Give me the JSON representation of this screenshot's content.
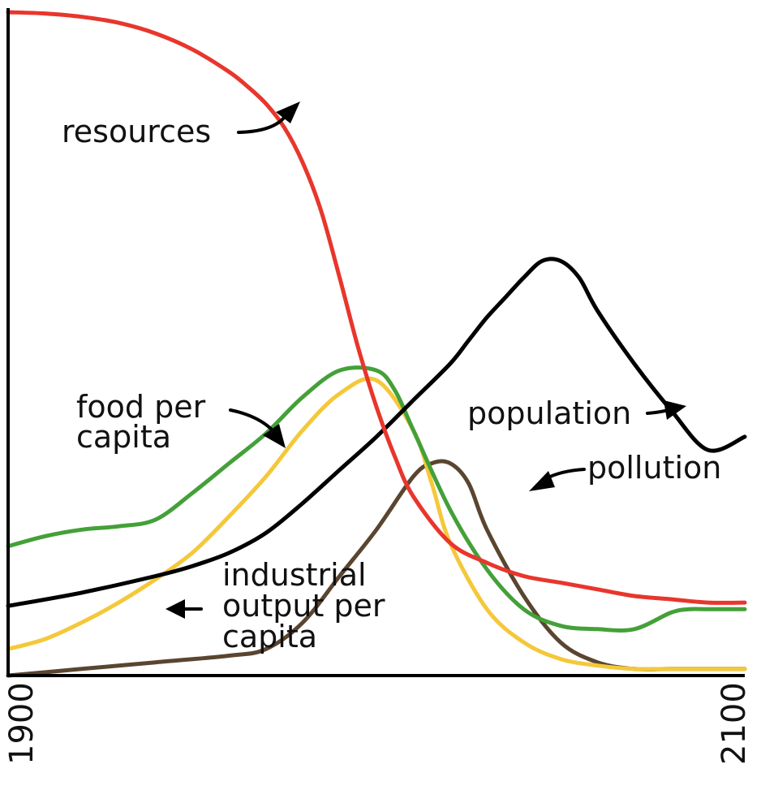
{
  "chart_data": {
    "type": "line",
    "xlim": [
      1900,
      2100
    ],
    "ylim": [
      0,
      1
    ],
    "grid": false,
    "x_ticks": [
      "1900",
      "2100"
    ],
    "series": [
      {
        "name": "resources",
        "color": "#e8362c",
        "x": [
          1900,
          1910,
          1920,
          1930,
          1940,
          1950,
          1960,
          1965,
          1970,
          1975,
          1980,
          1985,
          1990,
          1995,
          2000,
          2005,
          2010,
          2020,
          2030,
          2040,
          2050,
          2060,
          2070,
          2080,
          2090,
          2100
        ],
        "y": [
          1.0,
          0.998,
          0.993,
          0.984,
          0.968,
          0.944,
          0.91,
          0.888,
          0.862,
          0.826,
          0.773,
          0.7,
          0.6,
          0.495,
          0.405,
          0.33,
          0.27,
          0.2,
          0.17,
          0.15,
          0.14,
          0.13,
          0.12,
          0.115,
          0.11,
          0.11
        ]
      },
      {
        "name": "population",
        "color": "#000000",
        "x": [
          1900,
          1920,
          1940,
          1950,
          1960,
          1970,
          1980,
          1990,
          2000,
          2010,
          2020,
          2025,
          2030,
          2035,
          2040,
          2045,
          2050,
          2055,
          2060,
          2070,
          2080,
          2090,
          2100
        ],
        "y": [
          0.105,
          0.125,
          0.15,
          0.165,
          0.185,
          0.215,
          0.26,
          0.31,
          0.36,
          0.415,
          0.47,
          0.505,
          0.54,
          0.57,
          0.6,
          0.625,
          0.625,
          0.6,
          0.55,
          0.47,
          0.4,
          0.34,
          0.36
        ]
      },
      {
        "name": "food per capita",
        "color": "#44a038",
        "x": [
          1900,
          1910,
          1920,
          1930,
          1940,
          1950,
          1960,
          1970,
          1980,
          1990,
          2000,
          2005,
          2010,
          2020,
          2030,
          2040,
          2050,
          2060,
          2070,
          2080,
          2085,
          2090,
          2100
        ],
        "y": [
          0.195,
          0.21,
          0.22,
          0.225,
          0.235,
          0.275,
          0.32,
          0.365,
          0.42,
          0.46,
          0.46,
          0.43,
          0.37,
          0.25,
          0.16,
          0.1,
          0.075,
          0.07,
          0.07,
          0.095,
          0.1,
          0.1,
          0.1
        ]
      },
      {
        "name": "industrial output per capita",
        "color": "#f4c83a",
        "x": [
          1900,
          1910,
          1920,
          1930,
          1940,
          1950,
          1960,
          1970,
          1980,
          1990,
          2000,
          2010,
          2015,
          2020,
          2030,
          2040,
          2050,
          2060,
          2070,
          2080,
          2090,
          2100
        ],
        "y": [
          0.04,
          0.055,
          0.08,
          0.11,
          0.145,
          0.185,
          0.24,
          0.3,
          0.37,
          0.425,
          0.445,
          0.37,
          0.29,
          0.2,
          0.1,
          0.05,
          0.025,
          0.015,
          0.01,
          0.01,
          0.01,
          0.01
        ]
      },
      {
        "name": "pollution",
        "color": "#5a4530",
        "x": [
          1900,
          1920,
          1940,
          1960,
          1970,
          1980,
          1990,
          2000,
          2010,
          2015,
          2020,
          2025,
          2030,
          2040,
          2050,
          2060,
          2070,
          2080,
          2090,
          2100
        ],
        "y": [
          0.0,
          0.01,
          0.02,
          0.03,
          0.04,
          0.08,
          0.15,
          0.22,
          0.3,
          0.32,
          0.32,
          0.29,
          0.22,
          0.12,
          0.05,
          0.02,
          0.01,
          0.01,
          0.01,
          0.01
        ]
      }
    ],
    "labels": {
      "resources": "resources",
      "population": "population",
      "pollution": "pollution",
      "food_line1": "food per",
      "food_line2": "capita",
      "industrial_line1": "industrial",
      "industrial_line2": "output per",
      "industrial_line3": "capita"
    }
  }
}
